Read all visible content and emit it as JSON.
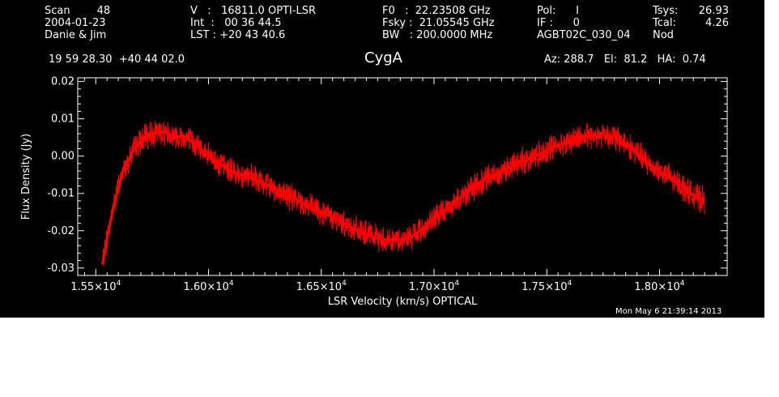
{
  "header": {
    "col1": [
      "Scan        48",
      "2004-01-23",
      "Danie & Jim"
    ],
    "col2": [
      "V   :   16811.0 OPTI-LSR",
      "Int  :   00 36 44.5",
      "LST : +20 43 40.6"
    ],
    "col3": [
      "F0   :  22.23508 GHz",
      "Fsky :  21.05545 GHz",
      "BW   : 200.0000 MHz"
    ],
    "col4": [
      "Pol:      I",
      "IF :      0",
      "AGBT02C_030_04"
    ],
    "col5_labels": [
      "Tsys:",
      "Tcal:",
      "Nod"
    ],
    "col5_values": [
      "26.93",
      "4.26",
      ""
    ],
    "coords": "19 59 28.30  +40 44 02.0",
    "source": "CygA",
    "azel": "Az: 288.7   El:  81.2   HA:  0.74",
    "timestamp": "Mon May  6 21:39:14 2013"
  },
  "chart_data": {
    "type": "line",
    "xlabel": "LSR Velocity (km/s) OPTICAL",
    "ylabel": "Flux Density (Jy)",
    "xlim": [
      15420,
      18300
    ],
    "ylim": [
      -0.032,
      0.021
    ],
    "x_ticks": [
      15500,
      16000,
      16500,
      17000,
      17500,
      18000
    ],
    "x_tick_mantissas": [
      "1.55",
      "1.60",
      "1.65",
      "1.70",
      "1.75",
      "1.80"
    ],
    "x_tick_exponent": "4",
    "y_ticks": [
      0.02,
      0.01,
      0.0,
      -0.01,
      -0.02,
      -0.03
    ],
    "y_tick_labels": [
      "0.02",
      "0.01",
      "0.00",
      "-0.01",
      "-0.02",
      "-0.03"
    ],
    "line_color": "#ff0000",
    "series": [
      {
        "x": [
          15530,
          15550,
          15580,
          15620,
          15680,
          15740,
          15800,
          15850,
          15900,
          15950,
          16000,
          16050,
          16100,
          16150,
          16200,
          16250,
          16300,
          16350,
          16400,
          16450,
          16500,
          16550,
          16600,
          16650,
          16700,
          16750,
          16800,
          16850,
          16900,
          16950,
          17000,
          17050,
          17100,
          17150,
          17200,
          17250,
          17300,
          17350,
          17400,
          17450,
          17500,
          17550,
          17600,
          17650,
          17700,
          17750,
          17800,
          17850,
          17900,
          17950,
          18000,
          18050,
          18100,
          18150,
          18200
        ],
        "y": [
          -0.029,
          -0.022,
          -0.013,
          -0.004,
          0.003,
          0.006,
          0.0065,
          0.0055,
          0.005,
          0.003,
          0.0,
          -0.002,
          -0.004,
          -0.005,
          -0.006,
          -0.0075,
          -0.009,
          -0.0105,
          -0.012,
          -0.0135,
          -0.015,
          -0.0165,
          -0.018,
          -0.0195,
          -0.021,
          -0.022,
          -0.0225,
          -0.0225,
          -0.0215,
          -0.0195,
          -0.017,
          -0.0145,
          -0.012,
          -0.0095,
          -0.0075,
          -0.0055,
          -0.004,
          -0.0025,
          -0.001,
          0.0,
          0.0015,
          0.003,
          0.004,
          0.005,
          0.0055,
          0.006,
          0.005,
          0.0035,
          0.001,
          -0.002,
          -0.004,
          -0.006,
          -0.008,
          -0.0105,
          -0.012
        ]
      }
    ]
  }
}
